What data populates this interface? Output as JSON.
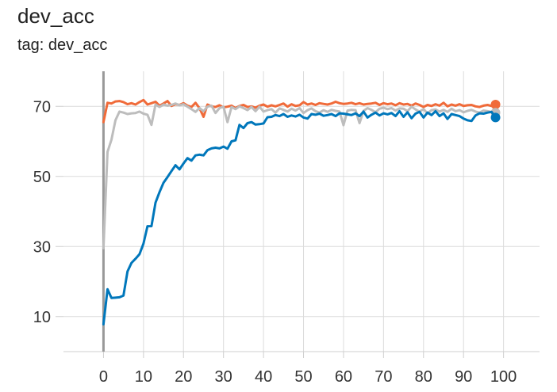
{
  "card": {
    "title": "dev_acc",
    "tag_line": "tag: dev_acc"
  },
  "chart_data": {
    "type": "line",
    "title": "dev_acc",
    "subtitle": "tag: dev_acc",
    "xlabel": "",
    "ylabel": "",
    "xlim": [
      -10,
      109
    ],
    "ylim": [
      0,
      80
    ],
    "xticks": [
      0,
      10,
      20,
      30,
      40,
      50,
      60,
      70,
      80,
      90,
      100
    ],
    "yticks": [
      10,
      30,
      50,
      70
    ],
    "grid": true,
    "legend": "none",
    "series": [
      {
        "color": "#f06b3a",
        "marker_at_last_point": true,
        "x": [
          0,
          1,
          2,
          3,
          4,
          5,
          6,
          7,
          8,
          9,
          10,
          11,
          12,
          13,
          14,
          15,
          16,
          17,
          18,
          19,
          20,
          21,
          22,
          23,
          24,
          25,
          26,
          27,
          28,
          29,
          30,
          31,
          32,
          33,
          34,
          35,
          36,
          37,
          38,
          39,
          40,
          41,
          42,
          43,
          44,
          45,
          46,
          47,
          48,
          49,
          50,
          51,
          52,
          53,
          54,
          55,
          56,
          57,
          58,
          59,
          60,
          61,
          62,
          63,
          64,
          65,
          66,
          67,
          68,
          69,
          70,
          71,
          72,
          73,
          74,
          75,
          76,
          77,
          78,
          79,
          80,
          81,
          82,
          83,
          84,
          85,
          86,
          87,
          88,
          89,
          90,
          91,
          92,
          93,
          94,
          95,
          96,
          97,
          98
        ],
        "values": [
          65.5,
          71.0,
          70.8,
          71.4,
          71.5,
          71.2,
          70.6,
          70.9,
          70.5,
          71.2,
          71.8,
          70.5,
          70.9,
          71.3,
          70.2,
          70.8,
          71.5,
          70.1,
          70.6,
          70.4,
          70.9,
          70.2,
          69.8,
          71.0,
          69.5,
          67.0,
          70.5,
          70.0,
          69.8,
          70.3,
          69.7,
          69.9,
          70.2,
          69.5,
          70.1,
          70.4,
          69.8,
          70.0,
          69.6,
          70.2,
          70.5,
          69.9,
          70.3,
          70.0,
          70.4,
          70.8,
          69.9,
          70.6,
          70.1,
          70.3,
          71.2,
          70.5,
          70.8,
          70.4,
          70.9,
          70.7,
          70.5,
          70.8,
          71.3,
          70.9,
          70.7,
          70.8,
          71.0,
          70.6,
          70.9,
          70.5,
          70.7,
          70.8,
          71.0,
          70.4,
          70.9,
          70.6,
          70.8,
          70.3,
          70.9,
          70.5,
          70.7,
          70.2,
          70.8,
          70.4,
          69.8,
          70.4,
          70.1,
          70.6,
          70.2,
          71.0,
          70.0,
          70.5,
          70.2,
          70.6,
          70.1,
          70.3,
          70.4,
          70.0,
          69.8,
          70.2,
          70.4,
          70.1,
          70.5
        ]
      },
      {
        "color": "#bdbdbd",
        "marker_at_last_point": true,
        "x": [
          0,
          1,
          2,
          3,
          4,
          5,
          6,
          7,
          8,
          9,
          10,
          11,
          12,
          13,
          14,
          15,
          16,
          17,
          18,
          19,
          20,
          21,
          22,
          23,
          24,
          25,
          26,
          27,
          28,
          29,
          30,
          31,
          32,
          33,
          34,
          35,
          36,
          37,
          38,
          39,
          40,
          41,
          42,
          43,
          44,
          45,
          46,
          47,
          48,
          49,
          50,
          51,
          52,
          53,
          54,
          55,
          56,
          57,
          58,
          59,
          60,
          61,
          62,
          63,
          64,
          65,
          66,
          67,
          68,
          69,
          70,
          71,
          72,
          73,
          74,
          75,
          76,
          77,
          78,
          79,
          80,
          81,
          82,
          83,
          84,
          85,
          86,
          87,
          88,
          89,
          90,
          91,
          92,
          93,
          94,
          95,
          96,
          97,
          98
        ],
        "values": [
          29.5,
          57.0,
          60.5,
          66.0,
          68.5,
          68.2,
          67.8,
          68.0,
          68.1,
          68.5,
          67.9,
          67.6,
          64.7,
          70.5,
          69.8,
          70.5,
          70.2,
          70.4,
          70.8,
          70.3,
          70.6,
          69.9,
          69.2,
          68.4,
          69.5,
          68.6,
          69.9,
          70.2,
          68.1,
          69.5,
          69.9,
          65.5,
          69.8,
          69.2,
          70.0,
          69.5,
          68.9,
          69.8,
          68.6,
          69.9,
          68.5,
          68.9,
          69.2,
          68.2,
          69.4,
          69.0,
          68.5,
          69.3,
          68.8,
          69.5,
          68.1,
          68.9,
          69.4,
          68.6,
          68.2,
          68.9,
          68.4,
          69.0,
          68.7,
          68.5,
          64.6,
          68.8,
          69.0,
          68.9,
          65.2,
          68.7,
          69.5,
          69.0,
          68.3,
          69.3,
          69.6,
          69.2,
          69.5,
          68.8,
          69.4,
          69.3,
          68.6,
          69.9,
          69.1,
          68.5,
          69.2,
          68.0,
          68.9,
          69.1,
          68.5,
          69.0,
          68.4,
          69.3,
          68.6,
          68.9,
          68.3,
          68.7,
          69.0,
          68.5,
          68.2,
          68.8,
          68.6,
          68.4,
          68.2
        ]
      },
      {
        "color": "#0077bb",
        "marker_at_last_point": true,
        "x": [
          0,
          1,
          2,
          3,
          4,
          5,
          6,
          7,
          8,
          9,
          10,
          11,
          12,
          13,
          14,
          15,
          16,
          17,
          18,
          19,
          20,
          21,
          22,
          23,
          24,
          25,
          26,
          27,
          28,
          29,
          30,
          31,
          32,
          33,
          34,
          35,
          36,
          37,
          38,
          39,
          40,
          41,
          42,
          43,
          44,
          45,
          46,
          47,
          48,
          49,
          50,
          51,
          52,
          53,
          54,
          55,
          56,
          57,
          58,
          59,
          60,
          61,
          62,
          63,
          64,
          65,
          66,
          67,
          68,
          69,
          70,
          71,
          72,
          73,
          74,
          75,
          76,
          77,
          78,
          79,
          80,
          81,
          82,
          83,
          84,
          85,
          86,
          87,
          88,
          89,
          90,
          91,
          92,
          93,
          94,
          95,
          96,
          97,
          98
        ],
        "values": [
          7.8,
          17.8,
          15.3,
          15.4,
          15.5,
          16.0,
          22.9,
          25.3,
          26.5,
          27.8,
          30.8,
          35.8,
          35.8,
          42.5,
          45.5,
          48.2,
          49.8,
          51.5,
          53.2,
          52.0,
          53.7,
          55.2,
          54.5,
          56.0,
          56.2,
          56.0,
          57.5,
          58.0,
          58.2,
          58.0,
          58.5,
          57.9,
          60.0,
          60.3,
          64.7,
          63.8,
          65.2,
          65.5,
          64.8,
          64.9,
          65.1,
          66.9,
          67.0,
          67.5,
          67.2,
          67.8,
          67.0,
          67.4,
          67.1,
          67.6,
          66.8,
          66.5,
          67.8,
          67.6,
          67.9,
          67.3,
          67.5,
          67.8,
          67.2,
          68.0,
          67.9,
          67.7,
          67.5,
          68.0,
          67.2,
          68.5,
          66.8,
          67.6,
          68.2,
          67.4,
          68.0,
          67.7,
          68.1,
          67.2,
          68.6,
          67.0,
          68.3,
          66.6,
          67.9,
          68.4,
          66.8,
          68.2,
          67.5,
          68.6,
          67.2,
          68.0,
          66.4,
          67.8,
          67.5,
          67.2,
          66.5,
          66.0,
          65.8,
          67.4,
          68.0,
          67.9,
          68.2,
          68.4,
          66.8
        ]
      }
    ]
  }
}
